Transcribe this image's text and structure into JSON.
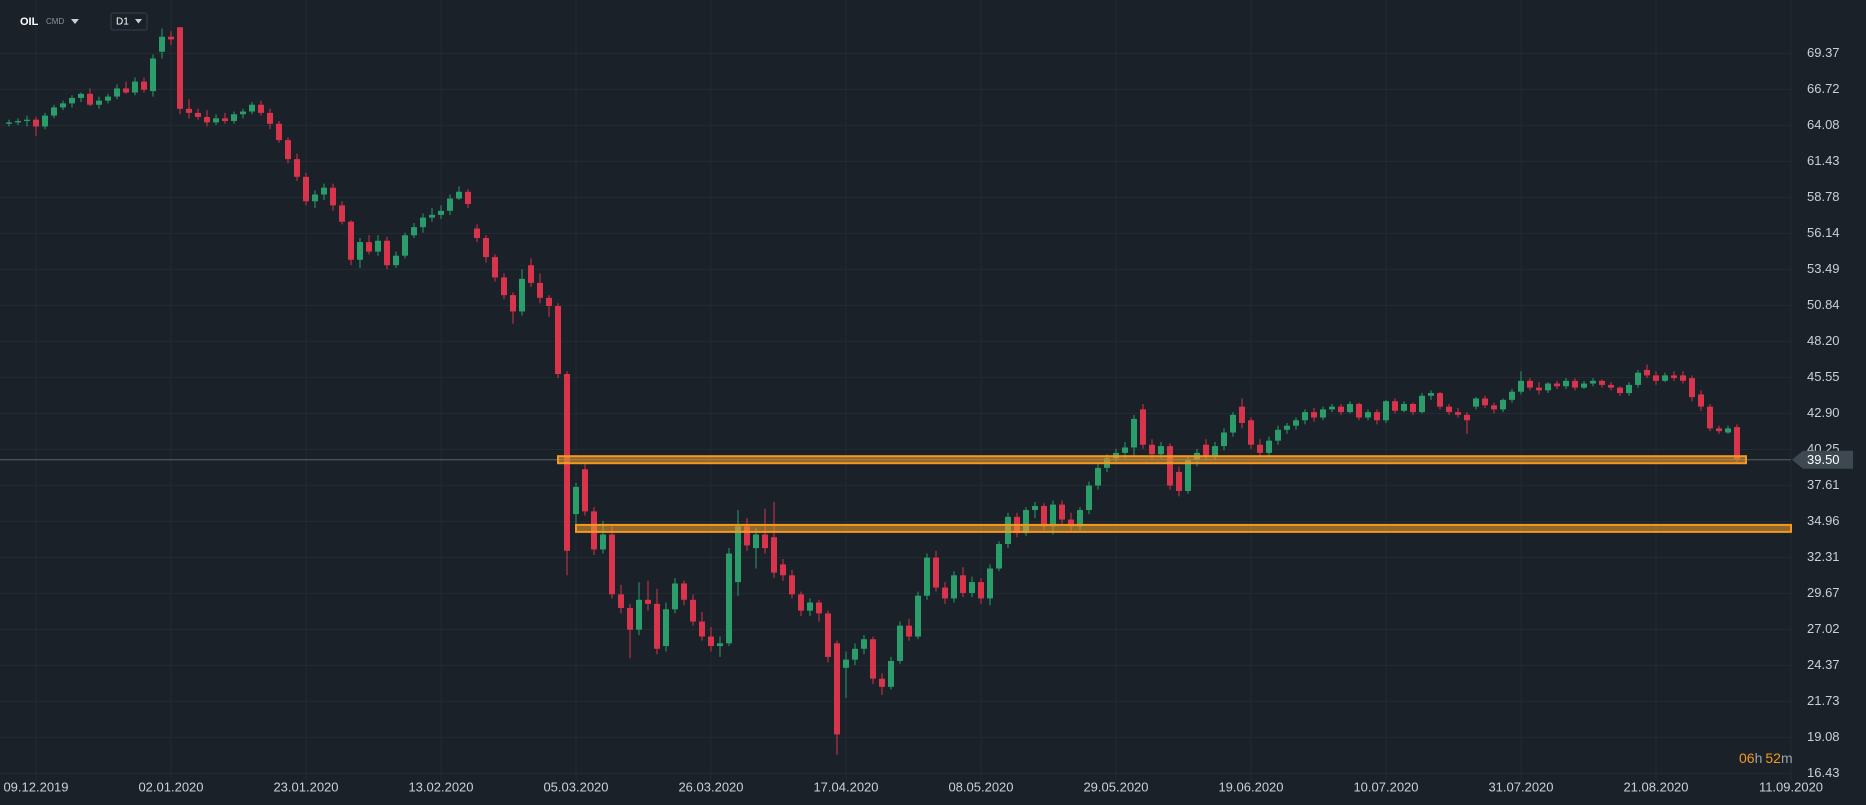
{
  "header": {
    "symbol": "OIL",
    "market": "CMD",
    "interval": "D1"
  },
  "timer": {
    "hours": "06",
    "hours_unit": "h",
    "minutes": "52",
    "minutes_unit": "m"
  },
  "chart_data": {
    "type": "candlestick",
    "up_color": "#2a9d6b",
    "down_color": "#d8344b",
    "grid": true,
    "xlim": [
      -1,
      198
    ],
    "ylim": [
      15.95,
      73.3
    ],
    "xticks": [
      {
        "value": 3,
        "label": "09.12.2019"
      },
      {
        "value": 18,
        "label": "02.01.2020"
      },
      {
        "value": 33,
        "label": "23.01.2020"
      },
      {
        "value": 48,
        "label": "13.02.2020"
      },
      {
        "value": 63,
        "label": "05.03.2020"
      },
      {
        "value": 78,
        "label": "26.03.2020"
      },
      {
        "value": 93,
        "label": "17.04.2020"
      },
      {
        "value": 108,
        "label": "08.05.2020"
      },
      {
        "value": 123,
        "label": "29.05.2020"
      },
      {
        "value": 138,
        "label": "19.06.2020"
      },
      {
        "value": 153,
        "label": "10.07.2020"
      },
      {
        "value": 168,
        "label": "31.07.2020"
      },
      {
        "value": 183,
        "label": "21.08.2020"
      },
      {
        "value": 198,
        "label": "11.09.2020"
      }
    ],
    "yticks": [
      69.37,
      66.72,
      64.08,
      61.43,
      58.78,
      56.14,
      53.49,
      50.84,
      {
        "value": 48.2,
        "label": "48.20"
      },
      45.55,
      {
        "value": 42.9,
        "label": "42.90"
      },
      40.25,
      37.61,
      34.96,
      32.31,
      29.67,
      27.02,
      24.37,
      21.73,
      19.08,
      16.43
    ],
    "current_price": {
      "value": 39.5,
      "label": "39.50"
    },
    "levels": [
      {
        "value": 39.5,
        "start": 61,
        "end": 193
      },
      {
        "value": 34.45,
        "start": 63,
        "end": 198
      }
    ],
    "candles": [
      [
        64.2,
        64.5,
        64.0,
        64.3
      ],
      [
        64.3,
        64.6,
        64.1,
        64.4
      ],
      [
        64.4,
        64.8,
        64.0,
        64.5
      ],
      [
        64.5,
        64.7,
        63.3,
        64.0
      ],
      [
        64.0,
        65.0,
        63.8,
        64.8
      ],
      [
        64.8,
        65.6,
        64.6,
        65.4
      ],
      [
        65.4,
        65.9,
        65.2,
        65.7
      ],
      [
        65.7,
        66.3,
        65.4,
        66.1
      ],
      [
        66.1,
        66.5,
        65.8,
        66.4
      ],
      [
        66.4,
        66.8,
        65.5,
        65.6
      ],
      [
        65.6,
        66.2,
        65.3,
        65.9
      ],
      [
        65.9,
        66.4,
        65.7,
        66.2
      ],
      [
        66.2,
        67.1,
        66.0,
        66.8
      ],
      [
        66.8,
        67.3,
        66.4,
        66.5
      ],
      [
        66.5,
        67.6,
        66.3,
        67.3
      ],
      [
        67.3,
        67.6,
        66.5,
        66.7
      ],
      [
        66.6,
        69.3,
        66.2,
        69.0
      ],
      [
        69.5,
        71.2,
        69.0,
        70.6
      ],
      [
        70.6,
        71.0,
        70.0,
        70.4
      ],
      [
        71.3,
        71.3,
        64.9,
        65.3
      ],
      [
        65.3,
        66.0,
        64.6,
        65.0
      ],
      [
        65.0,
        65.3,
        64.5,
        64.7
      ],
      [
        64.7,
        65.2,
        64.0,
        64.3
      ],
      [
        64.3,
        64.9,
        64.1,
        64.6
      ],
      [
        64.6,
        65.0,
        64.2,
        64.4
      ],
      [
        64.4,
        65.1,
        64.2,
        64.9
      ],
      [
        64.9,
        65.3,
        64.6,
        65.1
      ],
      [
        65.1,
        65.8,
        64.9,
        65.6
      ],
      [
        65.6,
        65.9,
        64.8,
        65.0
      ],
      [
        65.0,
        65.3,
        63.8,
        64.2
      ],
      [
        64.2,
        64.4,
        62.8,
        63.0
      ],
      [
        63.0,
        63.2,
        61.3,
        61.6
      ],
      [
        61.6,
        62.0,
        60.0,
        60.3
      ],
      [
        60.3,
        60.6,
        58.2,
        58.5
      ],
      [
        58.5,
        59.3,
        58.0,
        59.0
      ],
      [
        59.0,
        59.8,
        58.6,
        59.5
      ],
      [
        59.5,
        59.8,
        57.8,
        58.2
      ],
      [
        58.2,
        58.5,
        56.8,
        57.0
      ],
      [
        57.0,
        57.1,
        53.8,
        54.2
      ],
      [
        54.2,
        55.8,
        53.6,
        55.5
      ],
      [
        55.5,
        56.0,
        54.6,
        54.8
      ],
      [
        54.8,
        56.0,
        54.5,
        55.6
      ],
      [
        55.6,
        55.9,
        53.5,
        53.8
      ],
      [
        53.8,
        54.8,
        53.6,
        54.5
      ],
      [
        54.5,
        56.2,
        54.3,
        56.0
      ],
      [
        56.0,
        56.9,
        55.8,
        56.6
      ],
      [
        56.6,
        57.6,
        56.2,
        57.3
      ],
      [
        57.3,
        58.0,
        57.0,
        57.5
      ],
      [
        57.5,
        58.2,
        57.2,
        57.8
      ],
      [
        57.8,
        59.0,
        57.5,
        58.7
      ],
      [
        58.7,
        59.6,
        58.6,
        59.2
      ],
      [
        59.2,
        59.4,
        58.0,
        58.3
      ],
      [
        56.5,
        56.8,
        55.5,
        55.8
      ],
      [
        55.8,
        56.0,
        54.0,
        54.4
      ],
      [
        54.4,
        54.6,
        52.6,
        52.9
      ],
      [
        52.9,
        53.2,
        51.3,
        51.6
      ],
      [
        51.6,
        51.8,
        49.5,
        50.4
      ],
      [
        50.4,
        53.5,
        50.1,
        52.8
      ],
      [
        53.8,
        54.3,
        52.2,
        52.5
      ],
      [
        52.5,
        53.2,
        51.0,
        51.4
      ],
      [
        51.4,
        51.6,
        50.0,
        50.8
      ],
      [
        50.8,
        51.0,
        45.5,
        45.8
      ],
      [
        45.8,
        46.0,
        31.0,
        32.8
      ],
      [
        35.5,
        37.8,
        34.8,
        37.5
      ],
      [
        38.8,
        39.2,
        35.4,
        35.7
      ],
      [
        35.7,
        36.0,
        32.5,
        32.9
      ],
      [
        32.9,
        35.0,
        32.6,
        34.0
      ],
      [
        34.0,
        34.6,
        29.3,
        29.6
      ],
      [
        29.6,
        30.3,
        28.2,
        28.6
      ],
      [
        28.6,
        28.9,
        24.9,
        27.0
      ],
      [
        27.0,
        30.5,
        26.6,
        29.2
      ],
      [
        29.2,
        30.6,
        28.4,
        28.9
      ],
      [
        28.9,
        30.0,
        25.2,
        25.6
      ],
      [
        25.8,
        29.0,
        25.4,
        28.5
      ],
      [
        28.5,
        30.8,
        28.2,
        30.4
      ],
      [
        30.4,
        30.6,
        28.8,
        29.2
      ],
      [
        29.2,
        29.6,
        27.3,
        27.6
      ],
      [
        27.6,
        28.3,
        26.2,
        26.5
      ],
      [
        26.5,
        27.2,
        25.4,
        25.8
      ],
      [
        25.8,
        26.5,
        25.0,
        26.0
      ],
      [
        26.0,
        33.0,
        25.8,
        32.6
      ],
      [
        30.5,
        35.8,
        29.5,
        34.6
      ],
      [
        34.6,
        35.2,
        32.8,
        33.2
      ],
      [
        33.0,
        34.5,
        31.5,
        34.0
      ],
      [
        34.0,
        35.9,
        32.6,
        33.0
      ],
      [
        33.8,
        36.4,
        30.8,
        31.2
      ],
      [
        31.8,
        32.2,
        30.6,
        31.0
      ],
      [
        31.0,
        31.4,
        29.3,
        29.6
      ],
      [
        29.6,
        29.8,
        28.0,
        28.4
      ],
      [
        28.4,
        29.3,
        28.0,
        29.0
      ],
      [
        29.0,
        29.2,
        27.6,
        28.2
      ],
      [
        28.2,
        28.4,
        24.6,
        25.0
      ],
      [
        26.0,
        26.2,
        17.8,
        19.3
      ],
      [
        24.2,
        25.4,
        22.0,
        24.8
      ],
      [
        24.8,
        26.0,
        24.4,
        25.6
      ],
      [
        25.6,
        26.6,
        25.2,
        26.3
      ],
      [
        26.3,
        26.5,
        23.0,
        23.4
      ],
      [
        23.4,
        23.8,
        22.2,
        22.8
      ],
      [
        22.8,
        25.0,
        22.6,
        24.7
      ],
      [
        24.7,
        27.6,
        24.5,
        27.3
      ],
      [
        27.3,
        27.8,
        26.2,
        26.5
      ],
      [
        26.5,
        29.8,
        26.3,
        29.5
      ],
      [
        29.5,
        32.6,
        29.2,
        32.3
      ],
      [
        32.3,
        32.8,
        29.8,
        30.1
      ],
      [
        30.1,
        30.5,
        28.9,
        29.3
      ],
      [
        29.3,
        31.3,
        29.0,
        31.0
      ],
      [
        31.0,
        31.6,
        29.4,
        29.7
      ],
      [
        29.7,
        30.9,
        29.4,
        30.5
      ],
      [
        30.5,
        30.8,
        28.9,
        29.3
      ],
      [
        29.3,
        31.8,
        28.8,
        31.5
      ],
      [
        31.5,
        33.5,
        31.3,
        33.3
      ],
      [
        33.3,
        35.6,
        33.0,
        35.3
      ],
      [
        35.3,
        35.6,
        33.8,
        34.1
      ],
      [
        34.1,
        36.0,
        33.9,
        35.8
      ],
      [
        35.8,
        36.4,
        35.2,
        36.1
      ],
      [
        36.1,
        36.3,
        34.3,
        34.6
      ],
      [
        34.6,
        36.5,
        34.0,
        36.2
      ],
      [
        36.2,
        36.5,
        34.8,
        35.1
      ],
      [
        35.1,
        35.6,
        34.2,
        34.6
      ],
      [
        34.6,
        36.0,
        34.3,
        35.8
      ],
      [
        35.8,
        37.9,
        35.5,
        37.6
      ],
      [
        37.6,
        39.2,
        37.3,
        38.9
      ],
      [
        38.9,
        39.9,
        38.6,
        39.6
      ],
      [
        39.6,
        40.3,
        39.3,
        40.0
      ],
      [
        40.0,
        40.8,
        39.6,
        40.4
      ],
      [
        40.4,
        42.8,
        39.8,
        42.5
      ],
      [
        43.2,
        43.6,
        40.3,
        40.6
      ],
      [
        40.6,
        41.0,
        39.5,
        39.9
      ],
      [
        39.9,
        40.8,
        39.6,
        40.5
      ],
      [
        40.5,
        40.7,
        37.3,
        37.6
      ],
      [
        38.6,
        39.0,
        36.8,
        37.2
      ],
      [
        37.2,
        39.8,
        37.0,
        39.5
      ],
      [
        39.5,
        40.3,
        39.0,
        40.0
      ],
      [
        40.6,
        41.0,
        39.4,
        39.7
      ],
      [
        39.7,
        40.8,
        39.5,
        40.5
      ],
      [
        40.5,
        41.8,
        40.2,
        41.5
      ],
      [
        41.5,
        43.0,
        41.2,
        42.8
      ],
      [
        43.4,
        44.0,
        41.8,
        42.2
      ],
      [
        42.4,
        42.6,
        40.3,
        40.6
      ],
      [
        40.6,
        41.0,
        39.7,
        40.0
      ],
      [
        40.0,
        41.2,
        39.8,
        40.9
      ],
      [
        40.9,
        42.0,
        40.6,
        41.7
      ],
      [
        41.7,
        42.2,
        41.4,
        42.0
      ],
      [
        42.0,
        42.6,
        41.7,
        42.4
      ],
      [
        42.4,
        43.2,
        42.1,
        43.0
      ],
      [
        43.0,
        43.3,
        42.3,
        42.6
      ],
      [
        42.6,
        43.4,
        42.4,
        43.2
      ],
      [
        43.2,
        43.6,
        43.0,
        43.4
      ],
      [
        43.4,
        43.6,
        42.8,
        43.0
      ],
      [
        43.0,
        43.8,
        42.9,
        43.6
      ],
      [
        43.6,
        43.7,
        42.4,
        42.6
      ],
      [
        42.6,
        43.2,
        42.4,
        43.0
      ],
      [
        43.0,
        43.2,
        42.1,
        42.4
      ],
      [
        42.4,
        43.9,
        42.2,
        43.8
      ],
      [
        43.8,
        44.0,
        42.9,
        43.1
      ],
      [
        43.1,
        43.8,
        43.0,
        43.6
      ],
      [
        43.6,
        43.7,
        42.8,
        43.0
      ],
      [
        43.0,
        44.4,
        42.9,
        44.2
      ],
      [
        44.2,
        44.6,
        43.9,
        44.4
      ],
      [
        44.4,
        44.5,
        43.2,
        43.4
      ],
      [
        43.4,
        43.6,
        42.8,
        43.0
      ],
      [
        43.0,
        43.3,
        42.6,
        42.8
      ],
      [
        42.8,
        43.0,
        41.4,
        42.4
      ],
      [
        43.4,
        44.1,
        43.2,
        44.0
      ],
      [
        44.0,
        44.2,
        43.3,
        43.5
      ],
      [
        43.5,
        43.7,
        42.9,
        43.2
      ],
      [
        43.2,
        44.0,
        43.0,
        43.9
      ],
      [
        43.9,
        44.7,
        43.7,
        44.5
      ],
      [
        44.5,
        46.0,
        44.3,
        45.3
      ],
      [
        45.3,
        45.5,
        44.6,
        44.8
      ],
      [
        44.8,
        45.2,
        44.3,
        44.6
      ],
      [
        44.6,
        45.2,
        44.4,
        45.1
      ],
      [
        45.1,
        45.3,
        44.7,
        44.9
      ],
      [
        44.9,
        45.5,
        44.7,
        45.3
      ],
      [
        45.3,
        45.5,
        44.6,
        44.8
      ],
      [
        44.8,
        45.3,
        44.7,
        45.1
      ],
      [
        45.1,
        45.5,
        44.9,
        45.3
      ],
      [
        45.3,
        45.4,
        44.8,
        45.0
      ],
      [
        45.0,
        45.2,
        44.6,
        44.8
      ],
      [
        44.8,
        44.9,
        44.2,
        44.4
      ],
      [
        44.4,
        45.2,
        44.2,
        45.0
      ],
      [
        45.0,
        46.1,
        44.8,
        45.9
      ],
      [
        46.1,
        46.5,
        45.5,
        45.7
      ],
      [
        45.7,
        46.0,
        45.0,
        45.3
      ],
      [
        45.3,
        45.9,
        45.2,
        45.7
      ],
      [
        45.7,
        46.0,
        45.3,
        45.5
      ],
      [
        45.7,
        46.0,
        45.1,
        45.3
      ],
      [
        45.5,
        45.7,
        43.8,
        44.1
      ],
      [
        44.3,
        44.6,
        43.1,
        43.4
      ],
      [
        43.4,
        43.6,
        41.6,
        41.8
      ],
      [
        41.8,
        42.0,
        41.4,
        41.6
      ],
      [
        41.5,
        42.0,
        41.4,
        41.8
      ],
      [
        41.9,
        42.1,
        39.2,
        39.5
      ]
    ]
  }
}
